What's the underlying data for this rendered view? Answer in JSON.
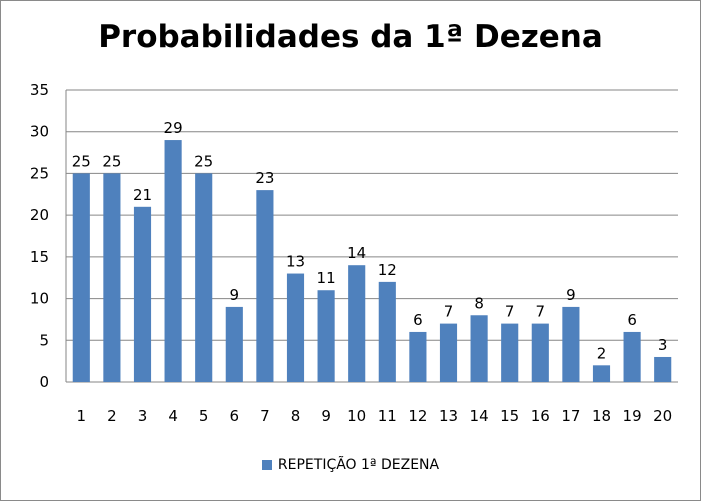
{
  "chart_data": {
    "type": "bar",
    "title": "Probabilidades da 1ª Dezena",
    "xlabel": "",
    "ylabel": "",
    "categories": [
      "1",
      "2",
      "3",
      "4",
      "5",
      "6",
      "7",
      "8",
      "9",
      "10",
      "11",
      "12",
      "13",
      "14",
      "15",
      "16",
      "17",
      "18",
      "19",
      "20"
    ],
    "series": [
      {
        "name": "REPETIÇÃO 1ª DEZENA",
        "values": [
          25,
          25,
          21,
          29,
          25,
          9,
          23,
          13,
          11,
          14,
          12,
          6,
          7,
          8,
          7,
          7,
          9,
          2,
          6,
          3
        ],
        "color": "#4f81bd"
      }
    ],
    "ylim": [
      0,
      35
    ],
    "yticks": [
      0,
      5,
      10,
      15,
      20,
      25,
      30,
      35
    ],
    "grid": true,
    "data_labels": true,
    "legend_position": "bottom"
  }
}
